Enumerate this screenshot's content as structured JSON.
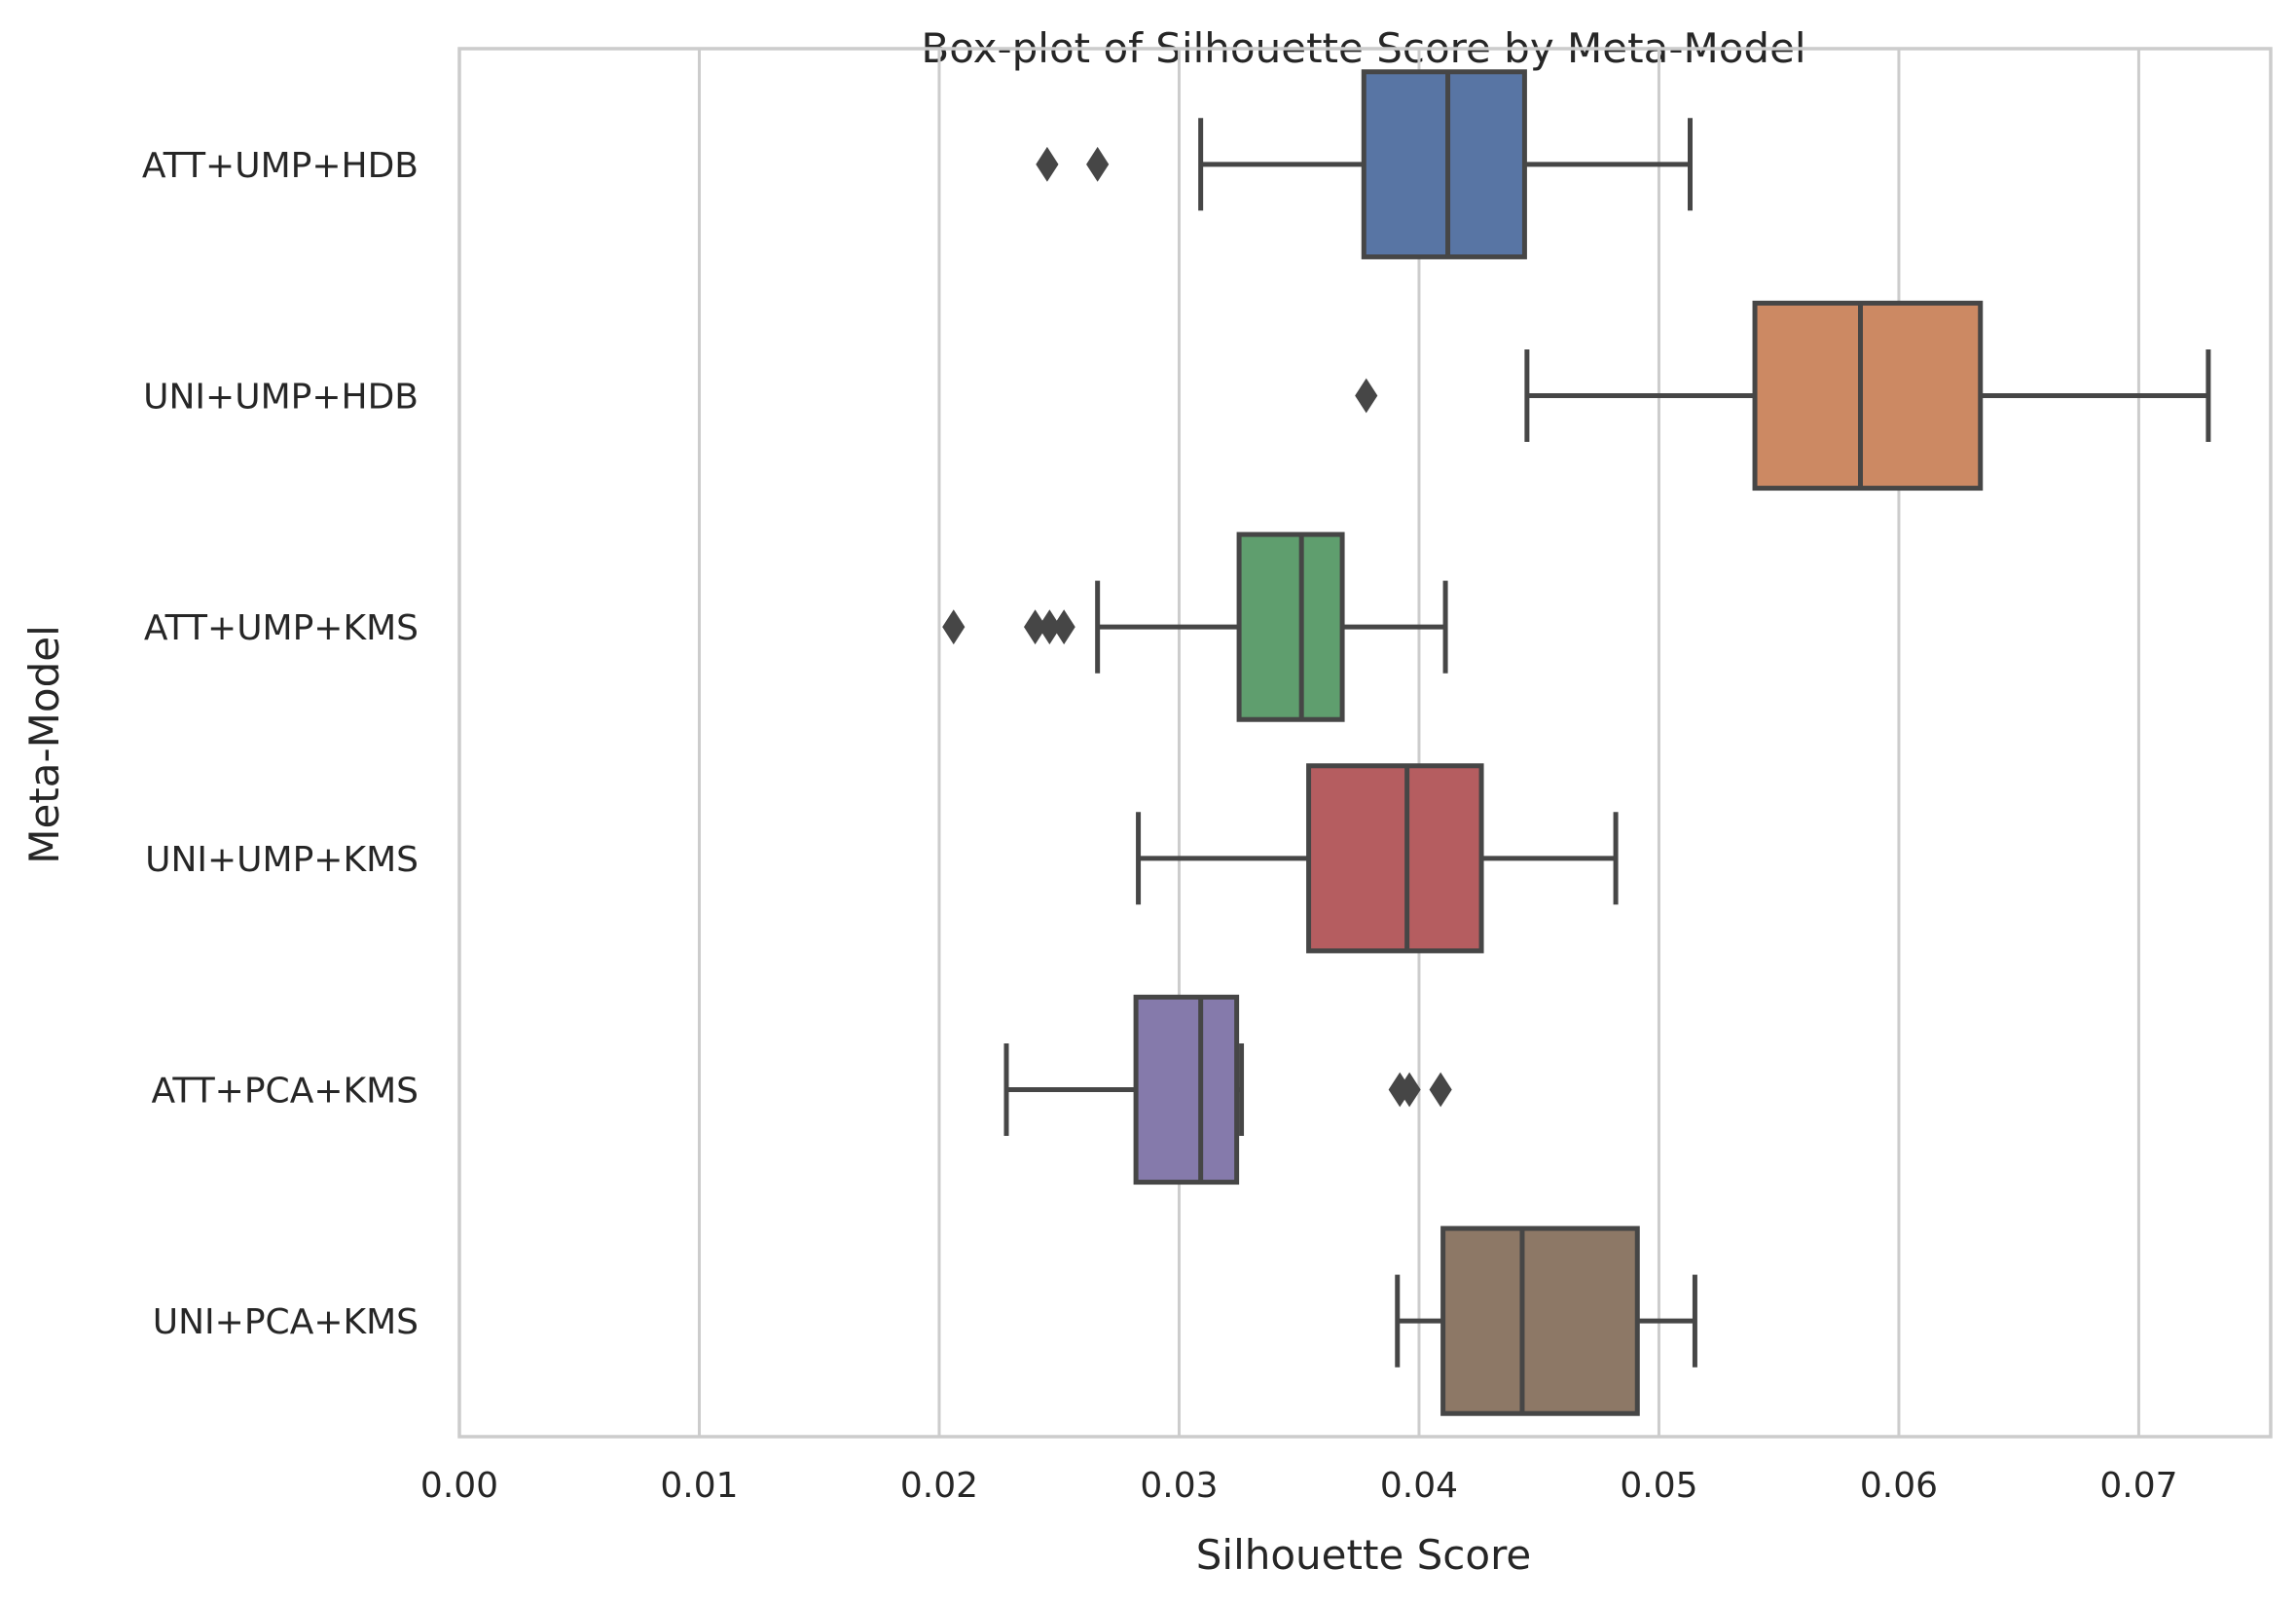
{
  "chart_data": {
    "type": "box",
    "title": "Box-plot of Silhouette Score by Meta-Model",
    "xlabel": "Silhouette Score",
    "ylabel": "Meta-Model",
    "xlim": [
      0.0,
      0.0755
    ],
    "xticks": [
      0.0,
      0.01,
      0.02,
      0.03,
      0.04,
      0.05,
      0.06,
      0.07
    ],
    "xtick_labels": [
      "0.00",
      "0.01",
      "0.02",
      "0.03",
      "0.04",
      "0.05",
      "0.06",
      "0.07"
    ],
    "grid": "vertical",
    "categories": [
      "ATT+UMP+HDB",
      "UNI+UMP+HDB",
      "ATT+UMP+KMS",
      "UNI+UMP+KMS",
      "ATT+PCA+KMS",
      "UNI+PCA+KMS"
    ],
    "boxes": [
      {
        "name": "ATT+UMP+HDB",
        "whisker_low": 0.0309,
        "q1": 0.0377,
        "median": 0.0412,
        "q3": 0.0444,
        "whisker_high": 0.0513,
        "outliers": [
          0.0245,
          0.0266
        ],
        "color": "#5875a4"
      },
      {
        "name": "UNI+UMP+HDB",
        "whisker_low": 0.0445,
        "q1": 0.054,
        "median": 0.0584,
        "q3": 0.0634,
        "whisker_high": 0.0729,
        "outliers": [
          0.0378
        ],
        "color": "#cc8963"
      },
      {
        "name": "ATT+UMP+KMS",
        "whisker_low": 0.0266,
        "q1": 0.0325,
        "median": 0.0351,
        "q3": 0.0368,
        "whisker_high": 0.0411,
        "outliers": [
          0.0206,
          0.024,
          0.0246,
          0.0252
        ],
        "color": "#5f9e6e"
      },
      {
        "name": "UNI+UMP+KMS",
        "whisker_low": 0.0283,
        "q1": 0.0354,
        "median": 0.0395,
        "q3": 0.0426,
        "whisker_high": 0.0482,
        "outliers": [],
        "color": "#b55d60"
      },
      {
        "name": "ATT+PCA+KMS",
        "whisker_low": 0.0228,
        "q1": 0.0282,
        "median": 0.0309,
        "q3": 0.0324,
        "whisker_high": 0.0326,
        "outliers": [
          0.0392,
          0.0396,
          0.0409
        ],
        "color": "#857aab"
      },
      {
        "name": "UNI+PCA+KMS",
        "whisker_low": 0.0391,
        "q1": 0.041,
        "median": 0.0443,
        "q3": 0.0491,
        "whisker_high": 0.0515,
        "outliers": [],
        "color": "#8d7866"
      }
    ]
  }
}
